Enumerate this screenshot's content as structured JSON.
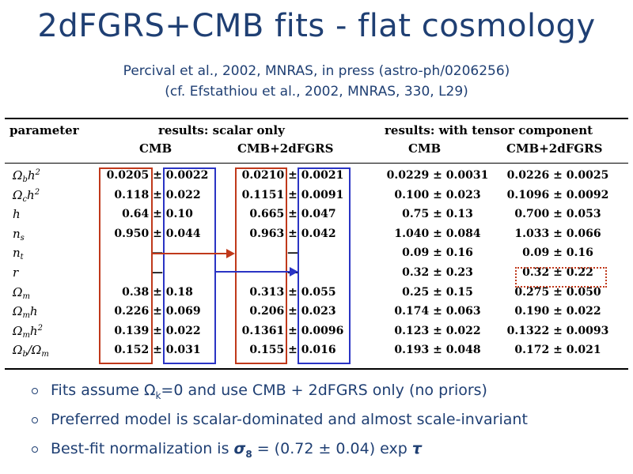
{
  "title": "2dFGRS+CMB fits - flat cosmology",
  "citation_main": "Percival et al., 2002, MNRAS, in press (astro-ph/0206256)",
  "citation_cf": "(cf. Efstathiou et al., 2002, MNRAS, 330, L29)",
  "table": {
    "headers": {
      "parameter": "parameter",
      "scalar_group": "results: scalar only",
      "tensor_group": "results: with tensor component",
      "cmb": "CMB",
      "cmb_2df": "CMB+2dFGRS"
    },
    "parameters": [
      "Ω_b h²",
      "Ω_c h²",
      "h",
      "n_s",
      "n_t",
      "r",
      "Ω_m",
      "Ω_m h",
      "Ω_m h²",
      "Ω_b/Ω_m"
    ],
    "rows": [
      {
        "param": "Ωbh2",
        "s_cmb": "0.0205 ± 0.0022",
        "s_2df": "0.0210 ± 0.0021",
        "t_cmb": "0.0229 ± 0.0031",
        "t_2df": "0.0226 ± 0.0025"
      },
      {
        "param": "Ωch2",
        "s_cmb": "0.118 ± 0.022",
        "s_2df": "0.1151 ± 0.0091",
        "t_cmb": "0.100 ± 0.023",
        "t_2df": "0.1096 ± 0.0092"
      },
      {
        "param": "h",
        "s_cmb": "0.64 ± 0.10",
        "s_2df": "0.665 ± 0.047",
        "t_cmb": "0.75 ± 0.13",
        "t_2df": "0.700 ± 0.053"
      },
      {
        "param": "ns",
        "s_cmb": "0.950 ± 0.044",
        "s_2df": "0.963 ± 0.042",
        "t_cmb": "1.040 ± 0.084",
        "t_2df": "1.033 ± 0.066"
      },
      {
        "param": "nt",
        "s_cmb": "—",
        "s_2df": "—",
        "t_cmb": "0.09 ± 0.16",
        "t_2df": "0.09 ± 0.16"
      },
      {
        "param": "r",
        "s_cmb": "—",
        "s_2df": "—",
        "t_cmb": "0.32 ± 0.23",
        "t_2df": "0.32 ± 0.22"
      },
      {
        "param": "Ωm",
        "s_cmb": "0.38 ± 0.18",
        "s_2df": "0.313 ± 0.055",
        "t_cmb": "0.25 ± 0.15",
        "t_2df": "0.275 ± 0.050"
      },
      {
        "param": "Ωmh",
        "s_cmb": "0.226 ± 0.069",
        "s_2df": "0.206 ± 0.023",
        "t_cmb": "0.174 ± 0.063",
        "t_2df": "0.190 ± 0.022"
      },
      {
        "param": "Ωmh2",
        "s_cmb": "0.139 ± 0.022",
        "s_2df": "0.1361 ± 0.0096",
        "t_cmb": "0.123 ± 0.022",
        "t_2df": "0.1322 ± 0.0093"
      },
      {
        "param": "Ωb/Ωm",
        "s_cmb": "0.152 ± 0.031",
        "s_2df": "0.155 ± 0.016",
        "t_cmb": "0.193 ± 0.048",
        "t_2df": "0.172 ± 0.021"
      }
    ]
  },
  "bullets": [
    {
      "pre": "Fits assume ",
      "omega": "Ω",
      "sub": "k",
      "post": "=0 and use CMB + 2dFGRS only (no priors)"
    },
    {
      "text": "Preferred model is scalar-dominated and almost scale-invariant"
    },
    {
      "pre": "Best-fit normalization is ",
      "sigma": "σ",
      "sub": "8",
      "post": " = (0.72 ± 0.04) exp ",
      "tau": "τ"
    }
  ],
  "colors": {
    "title": "#1f3f73",
    "red_box": "#c0391b",
    "blue_box": "#2a34c4"
  }
}
